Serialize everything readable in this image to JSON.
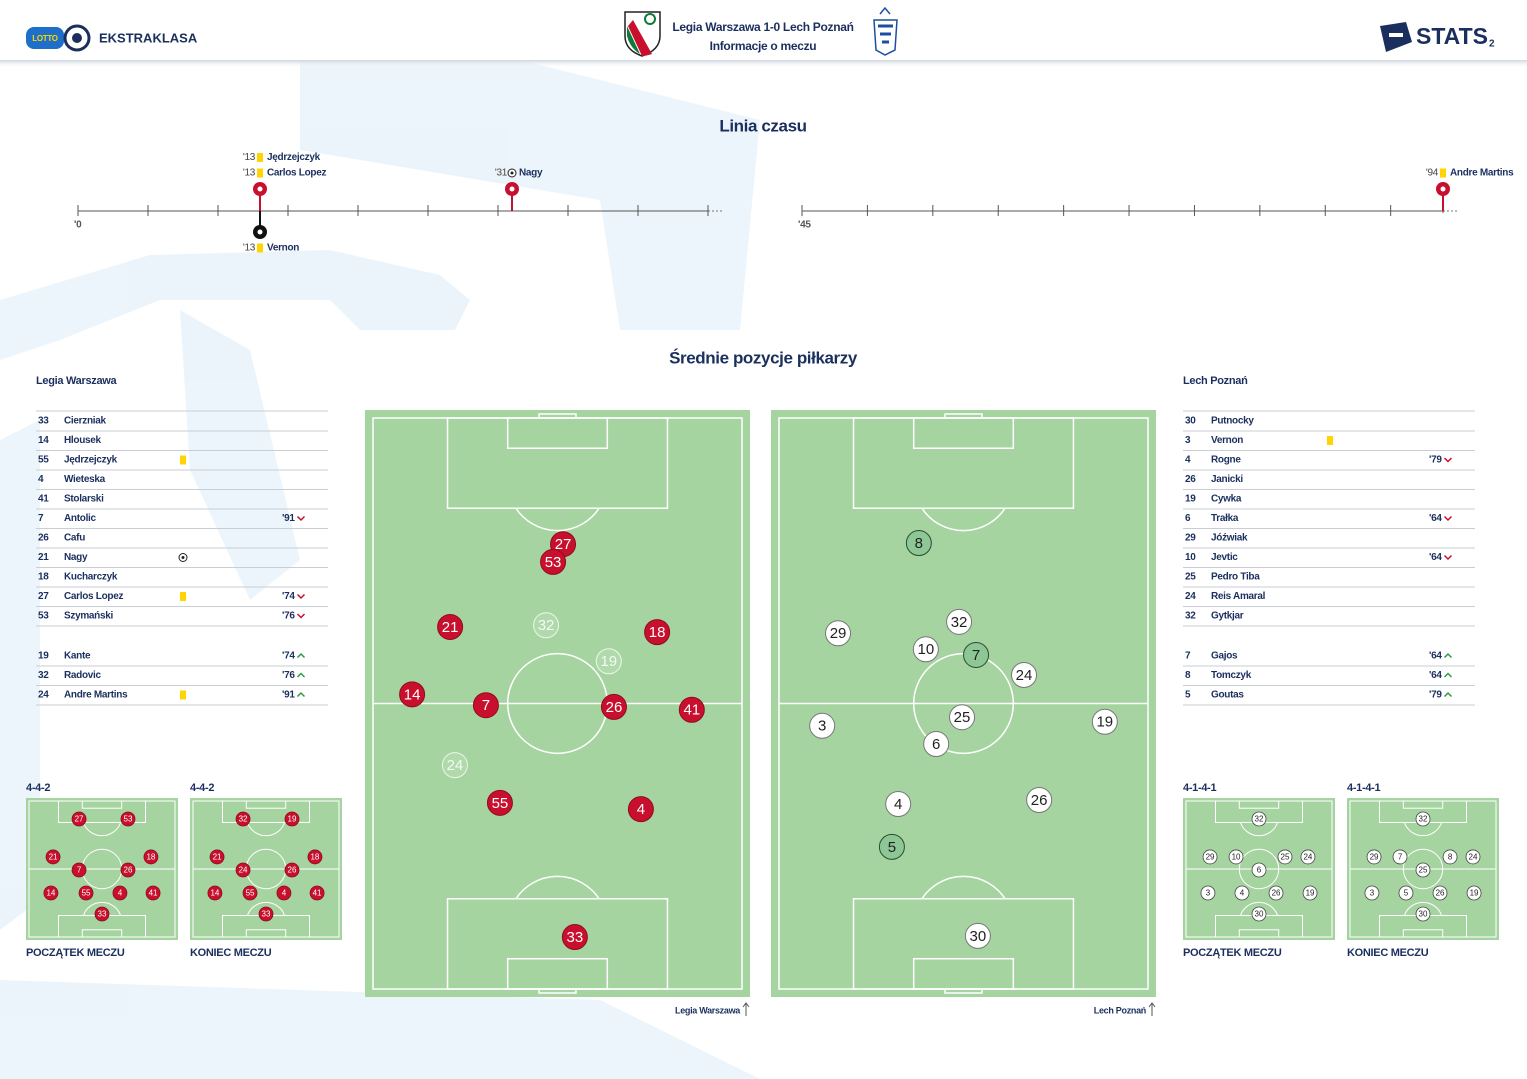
{
  "header": {
    "brand_small": "LOTTO",
    "brand": "EKSTRAKLASA",
    "title": "Legia Warszawa 1-0  Lech Poznań",
    "subtitle": "Informacje o meczu",
    "stats": "STATS",
    "page": "2"
  },
  "timeline": {
    "title": "Linia czasu",
    "halves": [
      {
        "label": "'0",
        "xlim": [
          0,
          45
        ],
        "ticks": [
          0,
          5,
          10,
          15,
          20,
          25,
          30,
          35,
          40,
          45
        ]
      },
      {
        "label": "'45",
        "xlim": [
          45,
          94
        ],
        "ticks": [
          45,
          50,
          55,
          60,
          65,
          70,
          75,
          80,
          85,
          90
        ]
      }
    ],
    "events": [
      {
        "half": 0,
        "minute": 13,
        "label": "'13",
        "player": "Jędrzejczyk",
        "event": "yellow",
        "team": "home"
      },
      {
        "half": 0,
        "minute": 13,
        "label": "'13",
        "player": "Carlos Lopez",
        "event": "yellow",
        "team": "home"
      },
      {
        "half": 0,
        "minute": 31,
        "label": "'31",
        "player": "Nagy",
        "event": "goal",
        "team": "home"
      },
      {
        "half": 0,
        "minute": 13,
        "label": "'13",
        "player": "Vernon",
        "event": "yellow",
        "team": "away"
      },
      {
        "half": 1,
        "minute": 94,
        "label": "'94",
        "player": "Andre Martins",
        "event": "yellow",
        "team": "home"
      }
    ]
  },
  "positions": {
    "title": "Średnie pozycje piłkarzy",
    "teams": [
      {
        "name": "Legia Warszawa",
        "lineup": [
          {
            "number": 33,
            "name": "Cierzniak"
          },
          {
            "number": 14,
            "name": "Hlousek"
          },
          {
            "number": 55,
            "name": "Jędrzejczyk",
            "event": "yellow"
          },
          {
            "number": 4,
            "name": "Wieteska"
          },
          {
            "number": 41,
            "name": "Stolarski"
          },
          {
            "number": 7,
            "name": "Antolic",
            "sub": "'91",
            "sub_type": "out"
          },
          {
            "number": 26,
            "name": "Cafu"
          },
          {
            "number": 21,
            "name": "Nagy",
            "event": "goal"
          },
          {
            "number": 18,
            "name": "Kucharczyk"
          },
          {
            "number": 27,
            "name": "Carlos Lopez",
            "event": "yellow",
            "sub": "'74",
            "sub_type": "out"
          },
          {
            "number": 53,
            "name": "Szymański",
            "sub": "'76",
            "sub_type": "out"
          }
        ],
        "subs": [
          {
            "number": 19,
            "name": "Kante",
            "sub": "'74",
            "sub_type": "in"
          },
          {
            "number": 32,
            "name": "Radovic",
            "sub": "'76",
            "sub_type": "in"
          },
          {
            "number": 24,
            "name": "Andre Martins",
            "event": "yellow",
            "sub": "'91",
            "sub_type": "in"
          }
        ],
        "players": [
          {
            "number": 27,
            "x": 51.5,
            "y": 22.1
          },
          {
            "number": 53,
            "x": 48.8,
            "y": 25.2
          },
          {
            "number": 21,
            "x": 20.9,
            "y": 36.6
          },
          {
            "number": 32,
            "x": 46.9,
            "y": 36.3,
            "sub": true
          },
          {
            "number": 18,
            "x": 77.0,
            "y": 37.5
          },
          {
            "number": 19,
            "x": 63.9,
            "y": 42.6,
            "sub": true
          },
          {
            "number": 14,
            "x": 10.6,
            "y": 48.4
          },
          {
            "number": 7,
            "x": 30.6,
            "y": 50.3
          },
          {
            "number": 26,
            "x": 65.3,
            "y": 50.6
          },
          {
            "number": 41,
            "x": 86.4,
            "y": 51.1
          },
          {
            "number": 24,
            "x": 22.2,
            "y": 60.8,
            "sub": true
          },
          {
            "number": 55,
            "x": 34.4,
            "y": 67.4
          },
          {
            "number": 4,
            "x": 72.6,
            "y": 68.5
          },
          {
            "number": 33,
            "x": 54.7,
            "y": 90.9
          }
        ],
        "formations": [
          {
            "shape": "4-4-2",
            "caption": "POCZĄTEK MECZU",
            "players": [
              [
                27,
                34.9,
                14.8
              ],
              [
                53,
                67.1,
                14.8
              ],
              [
                21,
                17.8,
                41.5
              ],
              [
                18,
                82.2,
                41.5
              ],
              [
                7,
                34.9,
                50.7
              ],
              [
                26,
                67.1,
                50.7
              ],
              [
                14,
                16.4,
                66.9
              ],
              [
                55,
                39.5,
                66.9
              ],
              [
                4,
                61.8,
                66.9
              ],
              [
                41,
                83.6,
                66.9
              ],
              [
                33,
                50.0,
                81.7
              ]
            ]
          },
          {
            "shape": "4-4-2",
            "caption": "KONIEC MECZU",
            "players": [
              [
                32,
                34.9,
                14.8
              ],
              [
                19,
                67.1,
                14.8
              ],
              [
                21,
                17.8,
                41.5
              ],
              [
                18,
                82.2,
                41.5
              ],
              [
                24,
                34.9,
                50.7
              ],
              [
                26,
                67.1,
                50.7
              ],
              [
                14,
                16.4,
                66.9
              ],
              [
                55,
                39.5,
                66.9
              ],
              [
                4,
                61.8,
                66.9
              ],
              [
                41,
                83.6,
                66.9
              ],
              [
                33,
                50.0,
                81.7
              ]
            ]
          }
        ]
      },
      {
        "name": "Lech Poznań",
        "lineup": [
          {
            "number": 30,
            "name": "Putnocky"
          },
          {
            "number": 3,
            "name": "Vernon",
            "event": "yellow"
          },
          {
            "number": 4,
            "name": "Rogne",
            "sub": "'79",
            "sub_type": "out"
          },
          {
            "number": 26,
            "name": "Janicki"
          },
          {
            "number": 19,
            "name": "Cywka"
          },
          {
            "number": 6,
            "name": "Trałka",
            "sub": "'64",
            "sub_type": "out"
          },
          {
            "number": 29,
            "name": "Jóźwiak"
          },
          {
            "number": 10,
            "name": "Jevtic",
            "sub": "'64",
            "sub_type": "out"
          },
          {
            "number": 25,
            "name": "Pedro Tiba"
          },
          {
            "number": 24,
            "name": "Reis Amaral"
          },
          {
            "number": 32,
            "name": "Gytkjar"
          }
        ],
        "subs": [
          {
            "number": 7,
            "name": "Gajos",
            "sub": "'64",
            "sub_type": "in"
          },
          {
            "number": 8,
            "name": "Tomczyk",
            "sub": "'64",
            "sub_type": "in"
          },
          {
            "number": 5,
            "name": "Goutas",
            "sub": "'79",
            "sub_type": "in"
          }
        ],
        "players": [
          {
            "number": 8,
            "x": 37.9,
            "y": 21.9,
            "sub": true
          },
          {
            "number": 32,
            "x": 48.8,
            "y": 35.7
          },
          {
            "number": 29,
            "x": 16.0,
            "y": 37.7
          },
          {
            "number": 10,
            "x": 39.8,
            "y": 40.5
          },
          {
            "number": 7,
            "x": 53.4,
            "y": 41.5,
            "sub": true
          },
          {
            "number": 24,
            "x": 66.4,
            "y": 45.0
          },
          {
            "number": 3,
            "x": 11.7,
            "y": 53.9
          },
          {
            "number": 25,
            "x": 49.6,
            "y": 52.4
          },
          {
            "number": 19,
            "x": 88.3,
            "y": 53.2
          },
          {
            "number": 6,
            "x": 42.6,
            "y": 57.1
          },
          {
            "number": 4,
            "x": 32.3,
            "y": 67.6
          },
          {
            "number": 26,
            "x": 70.5,
            "y": 66.9
          },
          {
            "number": 5,
            "x": 30.6,
            "y": 75.1,
            "sub": true
          },
          {
            "number": 30,
            "x": 53.9,
            "y": 90.7
          }
        ],
        "formations": [
          {
            "shape": "4-1-4-1",
            "caption": "POCZĄTEK MECZU",
            "players": [
              [
                32,
                50.0,
                14.8
              ],
              [
                29,
                17.8,
                41.5
              ],
              [
                10,
                34.9,
                41.5
              ],
              [
                25,
                67.1,
                41.5
              ],
              [
                24,
                82.2,
                41.5
              ],
              [
                6,
                50.0,
                50.7
              ],
              [
                3,
                16.4,
                66.9
              ],
              [
                4,
                38.8,
                66.9
              ],
              [
                26,
                61.2,
                66.9
              ],
              [
                19,
                83.6,
                66.9
              ],
              [
                30,
                50.0,
                81.7
              ]
            ]
          },
          {
            "shape": "4-1-4-1",
            "caption": "KONIEC MECZU",
            "players": [
              [
                32,
                50.0,
                14.8
              ],
              [
                29,
                17.8,
                41.5
              ],
              [
                7,
                34.9,
                41.5
              ],
              [
                8,
                67.8,
                41.5
              ],
              [
                24,
                82.9,
                41.5
              ],
              [
                25,
                50.0,
                50.7
              ],
              [
                3,
                16.4,
                66.9
              ],
              [
                5,
                38.8,
                66.9
              ],
              [
                26,
                61.2,
                66.9
              ],
              [
                19,
                83.6,
                66.9
              ],
              [
                30,
                50.0,
                81.7
              ]
            ]
          }
        ]
      }
    ]
  }
}
